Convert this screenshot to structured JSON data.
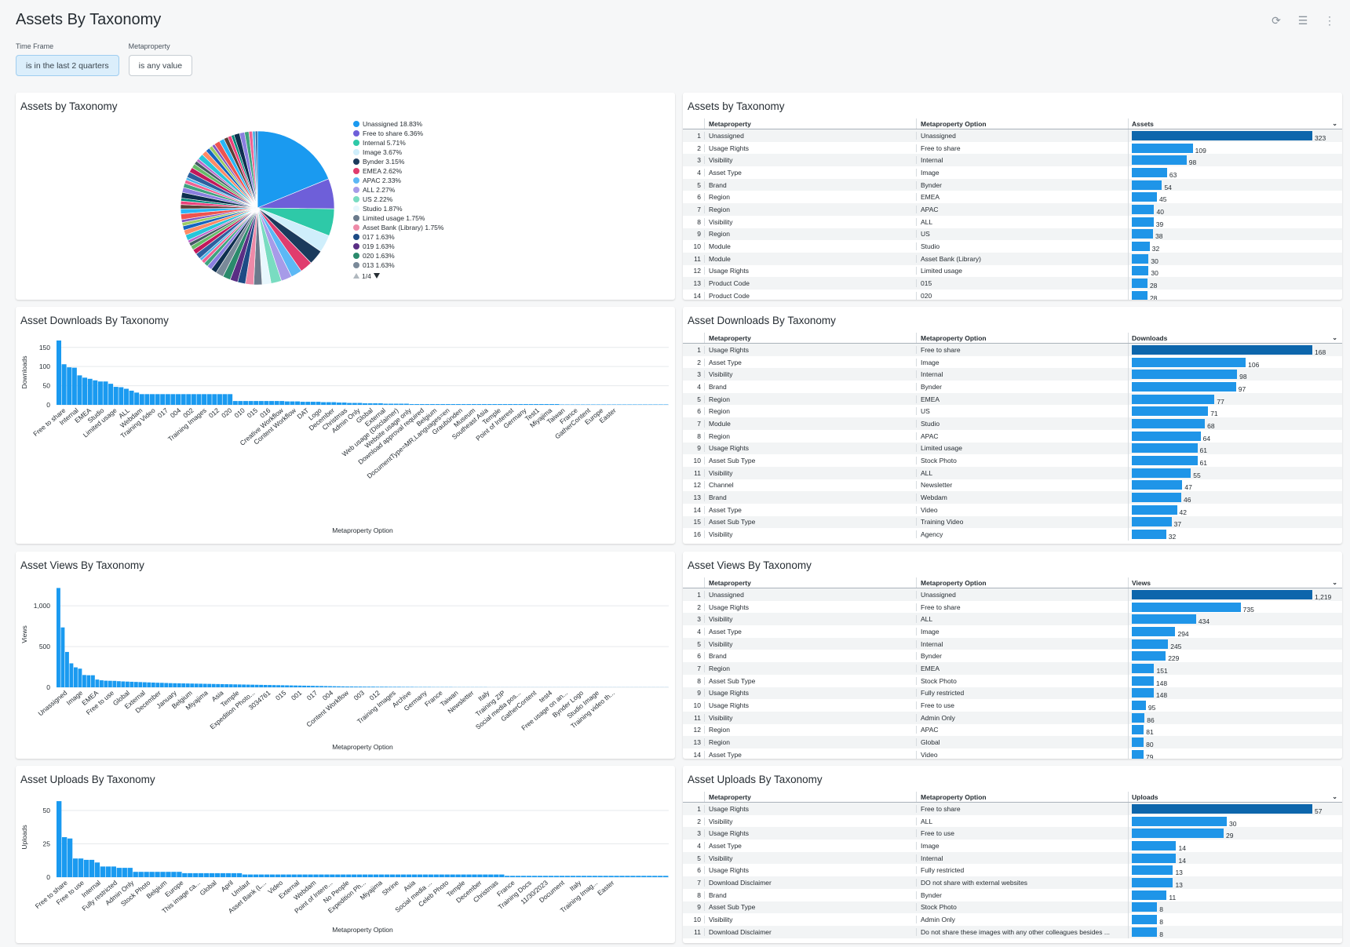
{
  "page": {
    "title": "Assets By Taxonomy"
  },
  "toolbar": {
    "refresh_icon": "refresh-icon",
    "filter_icon": "filter-icon",
    "more_icon": "more-vertical-icon"
  },
  "filters": [
    {
      "label": "Time Frame",
      "value": "is in the last 2 quarters",
      "active": true
    },
    {
      "label": "Metaproperty",
      "value": "is any value",
      "active": false
    }
  ],
  "pie": {
    "title": "Assets by Taxonomy",
    "legend": [
      {
        "label": "Unassigned 18.83%",
        "color": "#1a9af0"
      },
      {
        "label": "Free to share 6.36%",
        "color": "#6e5fd9"
      },
      {
        "label": "Internal 5.71%",
        "color": "#2ec9a8"
      },
      {
        "label": "Image 3.67%",
        "color": "#cfeefb"
      },
      {
        "label": "Bynder 3.15%",
        "color": "#1b3a5c"
      },
      {
        "label": "EMEA 2.62%",
        "color": "#e03c6e"
      },
      {
        "label": "APAC 2.33%",
        "color": "#5cb8f5"
      },
      {
        "label": "ALL 2.27%",
        "color": "#a79be8"
      },
      {
        "label": "US 2.22%",
        "color": "#79dcc1"
      },
      {
        "label": "Studio 1.87%",
        "color": "#e8f7fd"
      },
      {
        "label": "Limited usage 1.75%",
        "color": "#6b7a8c"
      },
      {
        "label": "Asset Bank (Library) 1.75%",
        "color": "#ee8aa8"
      },
      {
        "label": "017 1.63%",
        "color": "#1d4b85"
      },
      {
        "label": "019 1.63%",
        "color": "#5a2e84"
      },
      {
        "label": "020 1.63%",
        "color": "#2b8a6c"
      },
      {
        "label": "013 1.63%",
        "color": "#7a8a99"
      }
    ],
    "page_indicator": "1/4"
  },
  "assets_table": {
    "title": "Assets by Taxonomy",
    "headers": [
      "Metaproperty",
      "Metaproperty Option",
      "Assets"
    ],
    "rows": [
      [
        "1",
        "Unassigned",
        "Unassigned",
        323
      ],
      [
        "2",
        "Usage Rights",
        "Free to share",
        109
      ],
      [
        "3",
        "Visibility",
        "Internal",
        98
      ],
      [
        "4",
        "Asset Type",
        "Image",
        63
      ],
      [
        "5",
        "Brand",
        "Bynder",
        54
      ],
      [
        "6",
        "Region",
        "EMEA",
        45
      ],
      [
        "7",
        "Region",
        "APAC",
        40
      ],
      [
        "8",
        "Visibility",
        "ALL",
        39
      ],
      [
        "9",
        "Region",
        "US",
        38
      ],
      [
        "10",
        "Module",
        "Studio",
        32
      ],
      [
        "11",
        "Module",
        "Asset Bank (Library)",
        30
      ],
      [
        "12",
        "Usage Rights",
        "Limited usage",
        30
      ],
      [
        "13",
        "Product Code",
        "015",
        28
      ],
      [
        "14",
        "Product Code",
        "020",
        28
      ]
    ]
  },
  "downloads_table": {
    "title": "Asset Downloads By Taxonomy",
    "headers": [
      "Metaproperty",
      "Metaproperty Option",
      "Downloads"
    ],
    "rows": [
      [
        "1",
        "Usage Rights",
        "Free to share",
        168
      ],
      [
        "2",
        "Asset Type",
        "Image",
        106
      ],
      [
        "3",
        "Visibility",
        "Internal",
        98
      ],
      [
        "4",
        "Brand",
        "Bynder",
        97
      ],
      [
        "5",
        "Region",
        "EMEA",
        77
      ],
      [
        "6",
        "Region",
        "US",
        71
      ],
      [
        "7",
        "Module",
        "Studio",
        68
      ],
      [
        "8",
        "Region",
        "APAC",
        64
      ],
      [
        "9",
        "Usage Rights",
        "Limited usage",
        61
      ],
      [
        "10",
        "Asset Sub Type",
        "Stock Photo",
        61
      ],
      [
        "11",
        "Visibility",
        "ALL",
        55
      ],
      [
        "12",
        "Channel",
        "Newsletter",
        47
      ],
      [
        "13",
        "Brand",
        "Webdam",
        46
      ],
      [
        "14",
        "Asset Type",
        "Video",
        42
      ],
      [
        "15",
        "Asset Sub Type",
        "Training Video",
        37
      ],
      [
        "16",
        "Visibility",
        "Agency",
        32
      ]
    ]
  },
  "views_table": {
    "title": "Asset Views By Taxonomy",
    "headers": [
      "Metaproperty",
      "Metaproperty Option",
      "Views"
    ],
    "rows": [
      [
        "1",
        "Unassigned",
        "Unassigned",
        1219
      ],
      [
        "2",
        "Usage Rights",
        "Free to share",
        735
      ],
      [
        "3",
        "Visibility",
        "ALL",
        434
      ],
      [
        "4",
        "Asset Type",
        "Image",
        294
      ],
      [
        "5",
        "Visibility",
        "Internal",
        245
      ],
      [
        "6",
        "Brand",
        "Bynder",
        229
      ],
      [
        "7",
        "Region",
        "EMEA",
        151
      ],
      [
        "8",
        "Asset Sub Type",
        "Stock Photo",
        148
      ],
      [
        "9",
        "Usage Rights",
        "Fully restricted",
        148
      ],
      [
        "10",
        "Usage Rights",
        "Free to use",
        95
      ],
      [
        "11",
        "Visibility",
        "Admin Only",
        86
      ],
      [
        "12",
        "Region",
        "APAC",
        81
      ],
      [
        "13",
        "Region",
        "Global",
        80
      ],
      [
        "14",
        "Asset Type",
        "Video",
        79
      ]
    ]
  },
  "uploads_table": {
    "title": "Asset Uploads By Taxonomy",
    "headers": [
      "Metaproperty",
      "Metaproperty Option",
      "Uploads"
    ],
    "rows": [
      [
        "1",
        "Usage Rights",
        "Free to share",
        57
      ],
      [
        "2",
        "Visibility",
        "ALL",
        30
      ],
      [
        "3",
        "Usage Rights",
        "Free to use",
        29
      ],
      [
        "4",
        "Asset Type",
        "Image",
        14
      ],
      [
        "5",
        "Visibility",
        "Internal",
        14
      ],
      [
        "6",
        "Usage Rights",
        "Fully restricted",
        13
      ],
      [
        "7",
        "Download Disclaimer",
        "DO not share with external websites",
        13
      ],
      [
        "8",
        "Brand",
        "Bynder",
        11
      ],
      [
        "9",
        "Asset Sub Type",
        "Stock Photo",
        8
      ],
      [
        "10",
        "Visibility",
        "Admin Only",
        8
      ],
      [
        "11",
        "Download Disclaimer",
        "Do not share these images with any other colleagues besides ...",
        8
      ]
    ]
  },
  "chart_data": [
    {
      "id": "downloads",
      "type": "bar",
      "title": "Asset Downloads By Taxonomy",
      "xlabel": "Metaproperty Option",
      "ylabel": "Downloads",
      "ylim": [
        0,
        170
      ],
      "yticks": [
        0,
        50,
        100,
        150
      ],
      "values": [
        168,
        106,
        98,
        97,
        77,
        71,
        68,
        64,
        61,
        61,
        55,
        47,
        46,
        42,
        37,
        32,
        28,
        28,
        28,
        28,
        28,
        28,
        28,
        28,
        28,
        28,
        28,
        28,
        28,
        28,
        28,
        28,
        28,
        28,
        10,
        10,
        10,
        10,
        10,
        10,
        10,
        10,
        10,
        10,
        9,
        9,
        9,
        8,
        8,
        8,
        8,
        7,
        7,
        7,
        6,
        6,
        5,
        5,
        5,
        4,
        4,
        4,
        4,
        3,
        3,
        3,
        3,
        3,
        2,
        2,
        2,
        2,
        2,
        2,
        2,
        2,
        2,
        2,
        2,
        2,
        2,
        2,
        2,
        2,
        2,
        2,
        2,
        2,
        2,
        2,
        2,
        2,
        2,
        2,
        2,
        2,
        2,
        1,
        1,
        1,
        1,
        1,
        1,
        1,
        1,
        1,
        1,
        1,
        1,
        1,
        1,
        1,
        1,
        1,
        1,
        1,
        1,
        1
      ],
      "tick_labels": [
        "Free to share",
        "Internal",
        "EMEA",
        "Studio",
        "Limited usage",
        "ALL",
        "Webdam",
        "Training Video",
        "017",
        "004",
        "002",
        "Training Images",
        "012",
        "020",
        "010",
        "015",
        "016",
        "Creative Workflow",
        "Content Workflow",
        "DAT",
        "Logo",
        "December",
        "Christmas",
        "Admin Only",
        "Global",
        "External",
        "Web usage (Disclaimer)",
        "Website usage only",
        "Download approval required",
        "Belgium",
        "DocumentType=MR,Languages=en",
        "Graubünden",
        "Museum",
        "Southeast Asia",
        "Temple",
        "Point of Interest",
        "Germany",
        "Test1",
        "Miyajima",
        "Taiwan",
        "France",
        "GatherContent",
        "Europe",
        "Easter"
      ]
    },
    {
      "id": "views",
      "type": "bar",
      "title": "Asset Views By Taxonomy",
      "xlabel": "Metaproperty Option",
      "ylabel": "Views",
      "ylim": [
        0,
        1300
      ],
      "yticks": [
        0,
        500,
        1000
      ],
      "ytick_labels": [
        "0",
        "500",
        "1,000"
      ],
      "values": [
        1219,
        735,
        434,
        294,
        245,
        229,
        151,
        148,
        148,
        95,
        86,
        81,
        80,
        79,
        75,
        72,
        70,
        68,
        66,
        64,
        62,
        60,
        58,
        56,
        55,
        53,
        51,
        50,
        49,
        48,
        47,
        46,
        45,
        44,
        43,
        42,
        41,
        40,
        39,
        38,
        37,
        36,
        35,
        34,
        33,
        32,
        31,
        30,
        29,
        28,
        27,
        26,
        25,
        24,
        23,
        22,
        21,
        20,
        19,
        18,
        17,
        16,
        15,
        14,
        13,
        12,
        11,
        10,
        10,
        9,
        9,
        8,
        8,
        8,
        7,
        7,
        7,
        6,
        6,
        6,
        5,
        5,
        5,
        4,
        4,
        4,
        4,
        3,
        3,
        3,
        3,
        3,
        2,
        2,
        2,
        2,
        2,
        2,
        2,
        2,
        1,
        1,
        1,
        1,
        1,
        1,
        1,
        1,
        1,
        1,
        1,
        1,
        1,
        1,
        1,
        1,
        1,
        1,
        1,
        1,
        1,
        1,
        1,
        1,
        1,
        1,
        1,
        1,
        1,
        1,
        1,
        1,
        1,
        1,
        1,
        1,
        1,
        1,
        1,
        1,
        1,
        1
      ],
      "tick_labels": [
        "Unassigned",
        "Image",
        "EMEA",
        "Free to use",
        "Global",
        "External",
        "December",
        "January",
        "Belgium",
        "Miyajima",
        "Asia",
        "Temple",
        "Expedition Photo...",
        "3034761",
        "015",
        "001",
        "017",
        "004",
        "Content Workflow",
        "003",
        "012",
        "Training Images",
        "Archive",
        "Germany",
        "France",
        "Taiwan",
        "Newsletter",
        "Italy",
        "Training ZIP",
        "Social media pos...",
        "GatherContent",
        "test4",
        "Free usage on an...",
        "Bynder Logo",
        "Studio Image",
        "Training video th..."
      ]
    },
    {
      "id": "uploads",
      "type": "bar",
      "title": "Asset Uploads By Taxonomy",
      "xlabel": "Metaproperty Option",
      "ylabel": "Uploads",
      "ylim": [
        0,
        60
      ],
      "yticks": [
        0,
        25,
        50
      ],
      "values": [
        57,
        30,
        29,
        14,
        14,
        13,
        13,
        11,
        8,
        8,
        8,
        7,
        7,
        7,
        4,
        4,
        4,
        4,
        4,
        4,
        4,
        4,
        4,
        3,
        3,
        3,
        3,
        3,
        3,
        3,
        3,
        3,
        3,
        3,
        2,
        2,
        2,
        2,
        2,
        2,
        2,
        2,
        2,
        2,
        2,
        2,
        2,
        2,
        2,
        2,
        2,
        2,
        2,
        2,
        2,
        2,
        2,
        2,
        2,
        2,
        2,
        2,
        2,
        2,
        2,
        2,
        2,
        2,
        2,
        2,
        2,
        2,
        2,
        2,
        2,
        2,
        2,
        2,
        2,
        2,
        2,
        2,
        1,
        1,
        1,
        1,
        1,
        1,
        1,
        1,
        1,
        1,
        1,
        1,
        1,
        1,
        1,
        1,
        1,
        1,
        1,
        1,
        1,
        1,
        1,
        1,
        1,
        1,
        1,
        1,
        1,
        1
      ],
      "tick_labels": [
        "Free to share",
        "Free to use",
        "Internal",
        "Fully restricted",
        "Admin Only",
        "Stock Photo",
        "Belgium",
        "Europe",
        "This image ca...",
        "Global",
        "April",
        "Umlaut",
        "Asset Bank (L...",
        "Video",
        "External",
        "Webdam",
        "Point of Intere...",
        "No People",
        "Expedition Ph...",
        "Miyajima",
        "Shrine",
        "Asia",
        "Social media ...",
        "Celeb Photo",
        "Temple",
        "December",
        "Christmas",
        "France",
        "Training Docs",
        "11/30/2023",
        "Document",
        "Italy",
        "Training Imag...",
        "Easter"
      ]
    }
  ]
}
